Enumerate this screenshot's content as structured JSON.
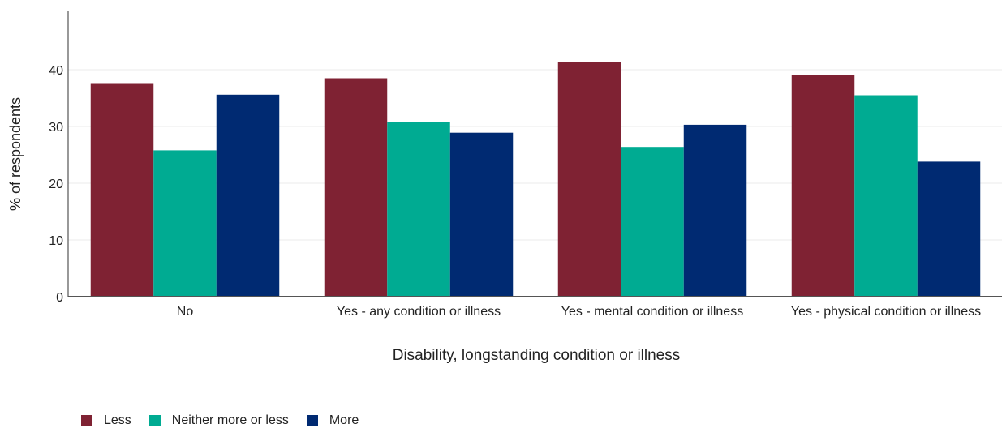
{
  "chart_data": {
    "type": "bar",
    "title": "",
    "xlabel": "Disability, longstanding condition or illness",
    "ylabel": "% of respondents",
    "ylim": [
      0,
      42.5
    ],
    "yticks": [
      0,
      10,
      20,
      30,
      40
    ],
    "grid": true,
    "legend_position": "bottom-left",
    "categories": [
      "No",
      "Yes - any condition or illness",
      "Yes - mental condition or illness",
      "Yes - physical condition or illness"
    ],
    "series": [
      {
        "name": "Less",
        "color": "#7f2233",
        "values": [
          37.5,
          38.5,
          41.4,
          39.1
        ]
      },
      {
        "name": "Neither more or less",
        "color": "#00ab92",
        "values": [
          25.8,
          30.8,
          26.4,
          35.5
        ]
      },
      {
        "name": "More",
        "color": "#002a72",
        "values": [
          35.6,
          28.9,
          30.3,
          23.8
        ]
      }
    ]
  }
}
